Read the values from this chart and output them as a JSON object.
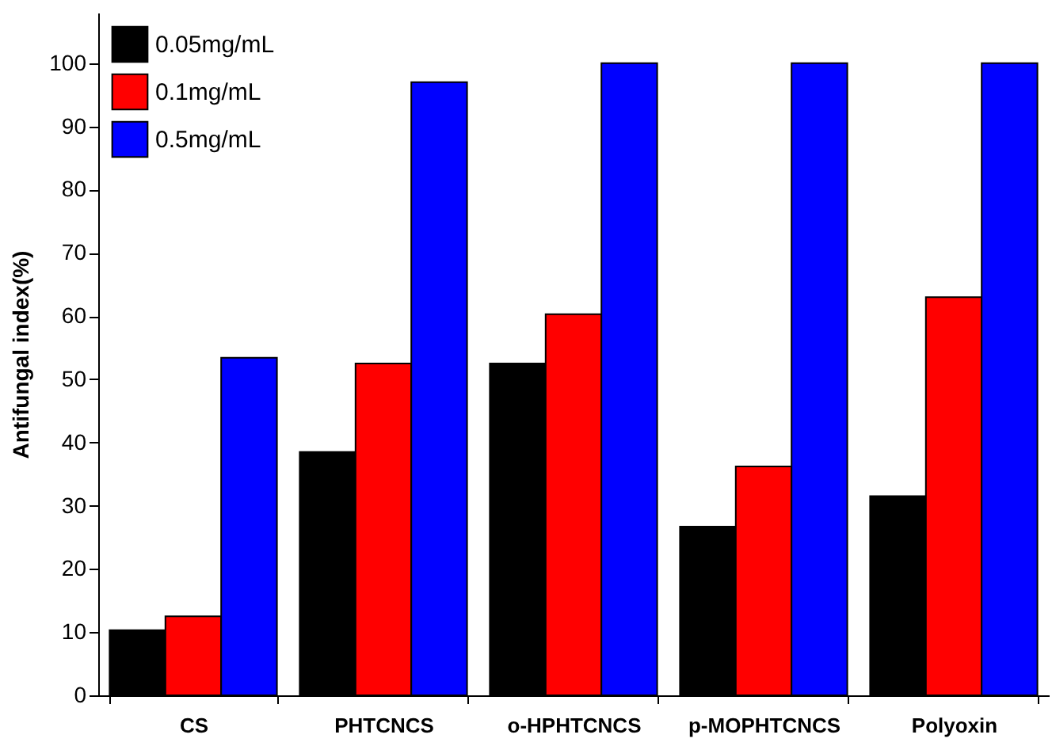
{
  "chart_data": {
    "type": "bar",
    "ylabel": "Antifungal index(%)",
    "categories": [
      "CS",
      "PHTCNCS",
      "o-HPHTCNCS",
      "p-MOPHTCNCS",
      "Polyoxin"
    ],
    "series": [
      {
        "name": "0.05mg/mL",
        "color": "#000000",
        "values": [
          10.3,
          38.5,
          52.5,
          26.7,
          31.5
        ]
      },
      {
        "name": "0.1mg/mL",
        "color": "#ff0000",
        "values": [
          12.5,
          52.5,
          60.3,
          36.2,
          63
        ]
      },
      {
        "name": "0.5mg/mL",
        "color": "#0000ff",
        "values": [
          53.4,
          97,
          100,
          100,
          100
        ]
      }
    ],
    "ylim": [
      0,
      108
    ],
    "yticks": [
      0,
      10,
      20,
      30,
      40,
      50,
      60,
      70,
      80,
      90,
      100
    ],
    "grid": false,
    "legend": "top left"
  }
}
